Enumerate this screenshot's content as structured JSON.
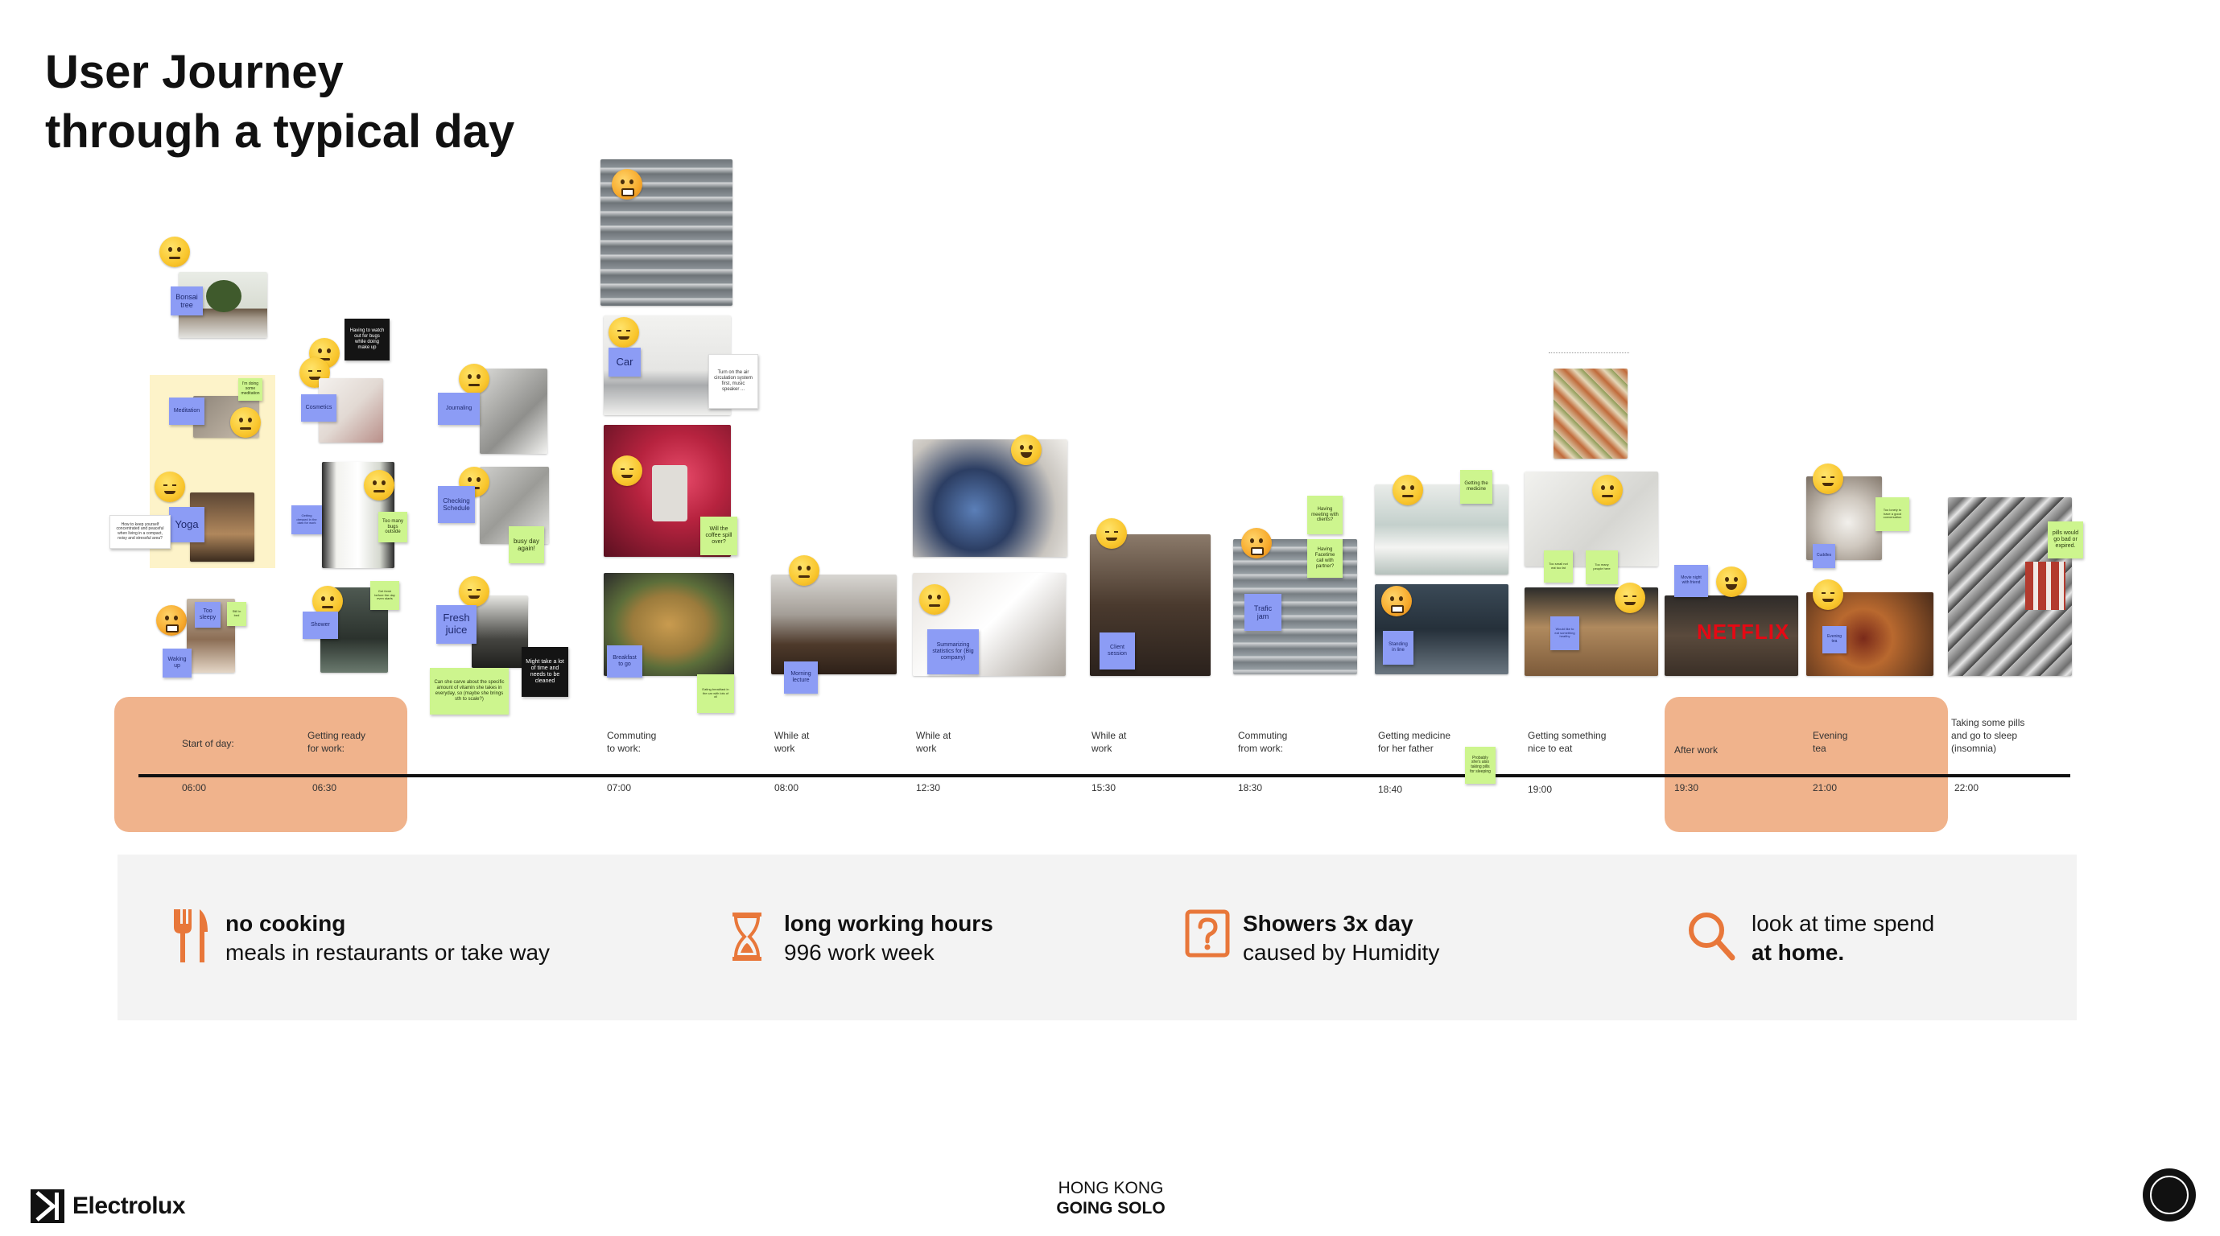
{
  "header": {
    "title": "User Journey",
    "subtitle": "through a typical day"
  },
  "stages": [
    {
      "label": "Start of day:",
      "time": "06:00"
    },
    {
      "label": "Getting ready\nfor work:",
      "time": "06:30"
    },
    {
      "label": "Commuting\nto work:",
      "time": "07:00"
    },
    {
      "label": "While at\nwork",
      "time": "08:00"
    },
    {
      "label": "While at\nwork",
      "time": "12:30"
    },
    {
      "label": "While at\nwork",
      "time": "15:30"
    },
    {
      "label": "Commuting\nfrom work:",
      "time": "18:30"
    },
    {
      "label": "Getting medicine\nfor her father",
      "time": "18:40"
    },
    {
      "label": "Getting something\nnice to eat",
      "time": "19:00"
    },
    {
      "label": "After work",
      "time": "19:30"
    },
    {
      "label": "Evening\ntea",
      "time": "21:00"
    },
    {
      "label": "Taking some pills\nand go to sleep\n(insomnia)",
      "time": "22:00"
    }
  ],
  "notes": {
    "bonsai": "Bonsai tree",
    "meditation": "Meditation",
    "meditation_green": "I'm doing some meditation",
    "yoga": "Yoga",
    "yoga_note": "How to keep yourself concentrated and peaceful when living in a compact, noisy and stressful area?",
    "too_sleepy": "Too sleepy",
    "green_small": "Still in bed",
    "waking_up": "Waking up",
    "cosmetics": "Cosmetics",
    "bugs": "Having to watch out for bugs while doing make up",
    "getting": "Getting dressed in the dark for work",
    "too_many_bugs": "Too many bugs outside",
    "shower": "Shower",
    "shower_green": "Get fresh before the day even starts",
    "journaling": "Journaling",
    "checking_schedule": "Checking Schedule",
    "busy_day": "busy day again!",
    "fresh_juice": "Fresh juice",
    "juice_note": "Can she carve about the specific amount of vitamin she takes in everyday, so (maybe she brings sth to scale?)",
    "juice_black": "Might take a lot of time and needs to be cleaned",
    "car": "Car",
    "car_note": "Turn on the air circulation system first, music speaker ...",
    "coffee_spill": "Will the coffee spill over?",
    "breakfast": "Breakfast to go",
    "breakfast_green": "Eating breakfast in the car with lots of oil",
    "morning_lecture": "Morning lecture",
    "summarizing": "Summarizing statistics for (Big company)",
    "client_session": "Client session",
    "traffic_jam": "Trafic jam",
    "meeting": "Having meeting with clients?",
    "facetime": "Having Facetime call with partner?",
    "getting_medicine": "Getting the medicine",
    "standing": "Standing in line",
    "probably": "Probably she's also taking pills for sleeping",
    "too_small": "Too small not eat too fat",
    "too_many_people": "Too many people here",
    "would_like": "Would like to eat something healthy",
    "movie_night": "Movie night with friend",
    "netflix": "NETFLIX",
    "too_lonely": "Too lonely to have a good conversation",
    "evening_tea": "Evening tea",
    "feeling_good": "Cuddles",
    "pills": "pills would go bad or expired."
  },
  "insights": [
    {
      "icon": "fork-knife-icon",
      "heading": "no cooking",
      "text": "meals in restaurants or take way"
    },
    {
      "icon": "hourglass-icon",
      "heading": "long working hours",
      "text": "996 work week"
    },
    {
      "icon": "question-box-icon",
      "heading": "Showers  3x day",
      "text": "caused by Humidity"
    },
    {
      "icon": "search-icon",
      "heading": "look at time spend",
      "text": "at home."
    }
  ],
  "colors": {
    "accent": "#e8773a",
    "highlight": "#f0b38c",
    "panel": "#f3f3f3",
    "sticky_blue": "#8c9cf5",
    "sticky_green": "#cdf58e"
  },
  "footer": {
    "brand": "Electrolux",
    "city": "HONG KONG",
    "tagline": "GOING SOLO"
  }
}
